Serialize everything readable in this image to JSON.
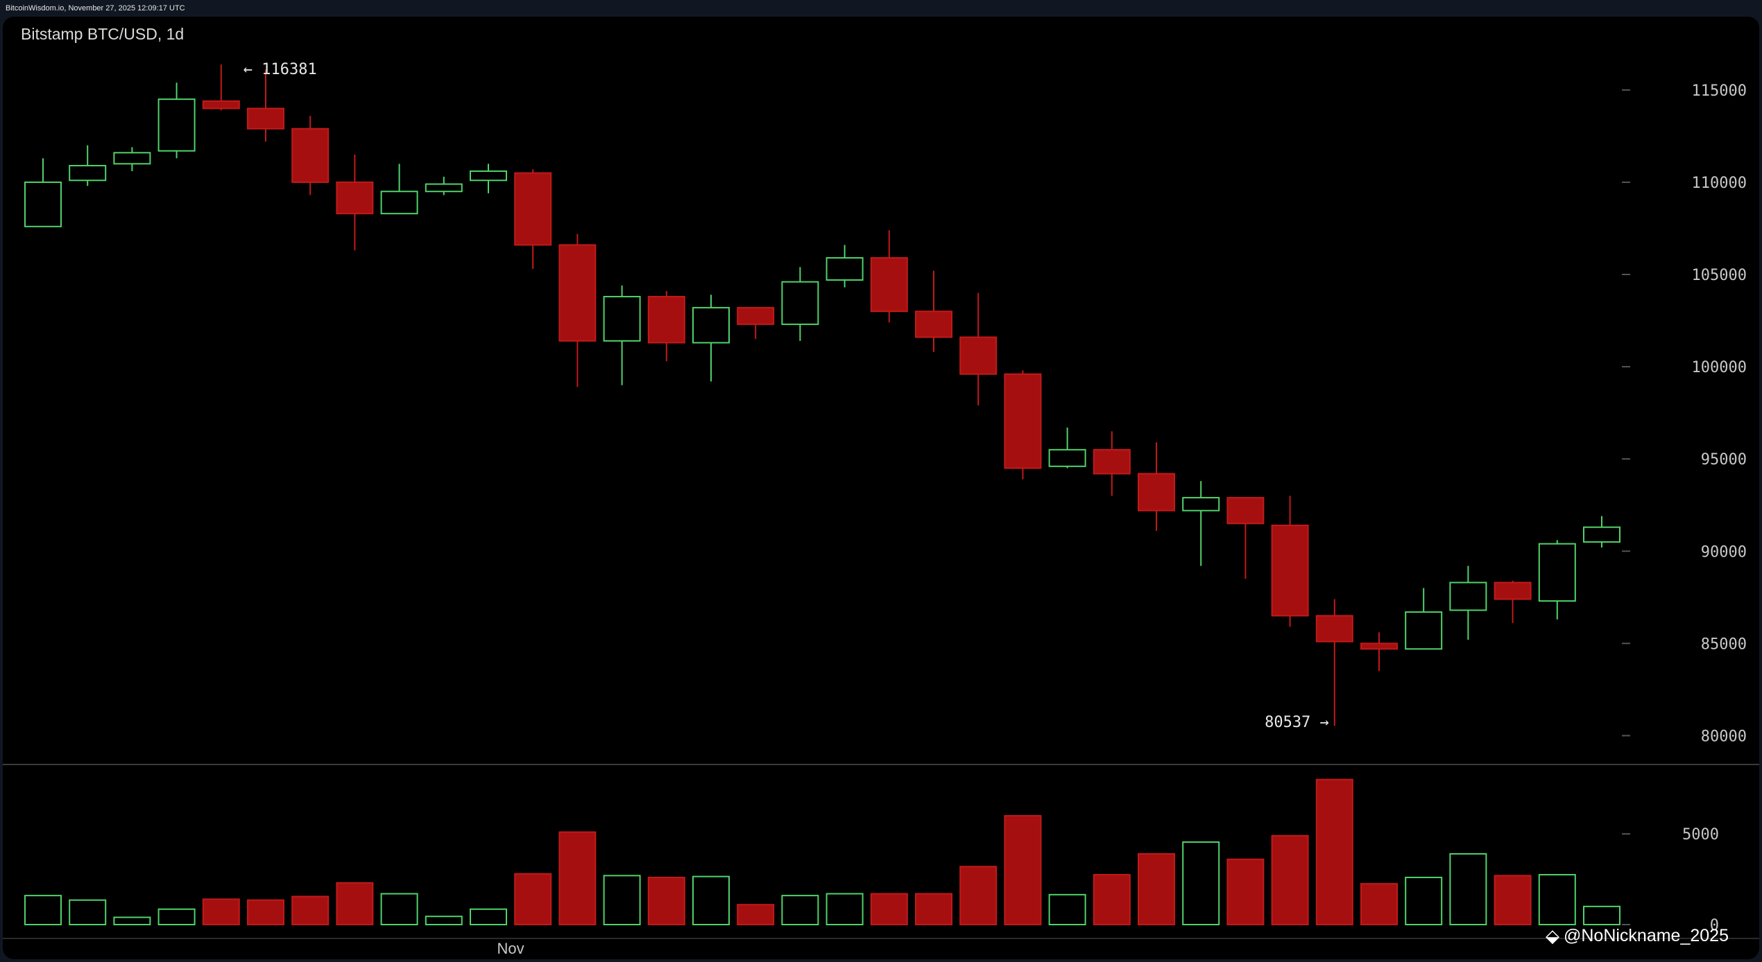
{
  "header": {
    "source_text": "BitcoinWisdom.io, November 27, 2025 12:09:17 UTC"
  },
  "watermark": {
    "icon": "binance-diamond-icon",
    "text": "@NoNickname_2025"
  },
  "colors": {
    "up": "#4fd36a",
    "down": "#a50f0f",
    "down_border": "#c11a1a",
    "text": "#c8c8c8",
    "grid": "#555555",
    "bg": "#000000"
  },
  "chart_data": {
    "type": "candlestick",
    "title": "Bitstamp BTC/USD, 1d",
    "x_tick_labels": [
      {
        "index": 10.5,
        "label": "Nov"
      }
    ],
    "price_axis": {
      "ticks": [
        80000,
        85000,
        90000,
        95000,
        100000,
        105000,
        110000,
        115000
      ],
      "range": [
        78400,
        118000
      ]
    },
    "volume_axis": {
      "ticks": [
        0,
        5000
      ],
      "range": [
        0,
        8600
      ]
    },
    "annotations": [
      {
        "label": "← 116381",
        "value": 116381,
        "candle_index": 4
      },
      {
        "label": "80537 →",
        "value": 80537,
        "candle_index": 29
      }
    ],
    "candles": [
      {
        "open": 107600,
        "high": 111300,
        "low": 107600,
        "close": 110000,
        "volume": 1600
      },
      {
        "open": 110100,
        "high": 112000,
        "low": 109800,
        "close": 110900,
        "volume": 1350
      },
      {
        "open": 111000,
        "high": 111900,
        "low": 110600,
        "close": 111600,
        "volume": 400
      },
      {
        "open": 111700,
        "high": 115400,
        "low": 111300,
        "close": 114500,
        "volume": 850
      },
      {
        "open": 114400,
        "high": 116381,
        "low": 113900,
        "close": 114000,
        "volume": 1400
      },
      {
        "open": 114000,
        "high": 116100,
        "low": 112200,
        "close": 112900,
        "volume": 1350
      },
      {
        "open": 112900,
        "high": 113600,
        "low": 109300,
        "close": 110000,
        "volume": 1550
      },
      {
        "open": 110000,
        "high": 111500,
        "low": 106300,
        "close": 108300,
        "volume": 2300
      },
      {
        "open": 108300,
        "high": 111000,
        "low": 108300,
        "close": 109500,
        "volume": 1700
      },
      {
        "open": 109500,
        "high": 110300,
        "low": 109300,
        "close": 109900,
        "volume": 450
      },
      {
        "open": 110100,
        "high": 111000,
        "low": 109400,
        "close": 110600,
        "volume": 850
      },
      {
        "open": 110500,
        "high": 110700,
        "low": 105300,
        "close": 106600,
        "volume": 2800
      },
      {
        "open": 106600,
        "high": 107200,
        "low": 98900,
        "close": 101400,
        "volume": 5100
      },
      {
        "open": 101400,
        "high": 104400,
        "low": 99000,
        "close": 103800,
        "volume": 2700
      },
      {
        "open": 103800,
        "high": 104100,
        "low": 100300,
        "close": 101300,
        "volume": 2600
      },
      {
        "open": 101300,
        "high": 103900,
        "low": 99200,
        "close": 103200,
        "volume": 2650
      },
      {
        "open": 103200,
        "high": 103200,
        "low": 101500,
        "close": 102300,
        "volume": 1100
      },
      {
        "open": 102300,
        "high": 105400,
        "low": 101400,
        "close": 104600,
        "volume": 1600
      },
      {
        "open": 104700,
        "high": 106600,
        "low": 104300,
        "close": 105900,
        "volume": 1700
      },
      {
        "open": 105900,
        "high": 107400,
        "low": 102400,
        "close": 103000,
        "volume": 1700
      },
      {
        "open": 103000,
        "high": 105200,
        "low": 100800,
        "close": 101600,
        "volume": 1700
      },
      {
        "open": 101600,
        "high": 104000,
        "low": 97900,
        "close": 99600,
        "volume": 3200
      },
      {
        "open": 99600,
        "high": 99800,
        "low": 93900,
        "close": 94500,
        "volume": 6000
      },
      {
        "open": 94600,
        "high": 96700,
        "low": 94500,
        "close": 95500,
        "volume": 1650
      },
      {
        "open": 95500,
        "high": 96500,
        "low": 93000,
        "close": 94200,
        "volume": 2750
      },
      {
        "open": 94200,
        "high": 95900,
        "low": 91100,
        "close": 92200,
        "volume": 3900
      },
      {
        "open": 92200,
        "high": 93800,
        "low": 89200,
        "close": 92900,
        "volume": 4550
      },
      {
        "open": 92900,
        "high": 92900,
        "low": 88500,
        "close": 91500,
        "volume": 3600
      },
      {
        "open": 91400,
        "high": 93000,
        "low": 85900,
        "close": 86500,
        "volume": 4900
      },
      {
        "open": 86500,
        "high": 87400,
        "low": 80537,
        "close": 85100,
        "volume": 8000
      },
      {
        "open": 85000,
        "high": 85600,
        "low": 83500,
        "close": 84700,
        "volume": 2250
      },
      {
        "open": 84700,
        "high": 88000,
        "low": 84700,
        "close": 86700,
        "volume": 2600
      },
      {
        "open": 86800,
        "high": 89200,
        "low": 85200,
        "close": 88300,
        "volume": 3900
      },
      {
        "open": 88300,
        "high": 88400,
        "low": 86100,
        "close": 87400,
        "volume": 2700
      },
      {
        "open": 87300,
        "high": 90600,
        "low": 86300,
        "close": 90400,
        "volume": 2750
      },
      {
        "open": 90500,
        "high": 91900,
        "low": 90200,
        "close": 91300,
        "volume": 1000
      }
    ]
  }
}
